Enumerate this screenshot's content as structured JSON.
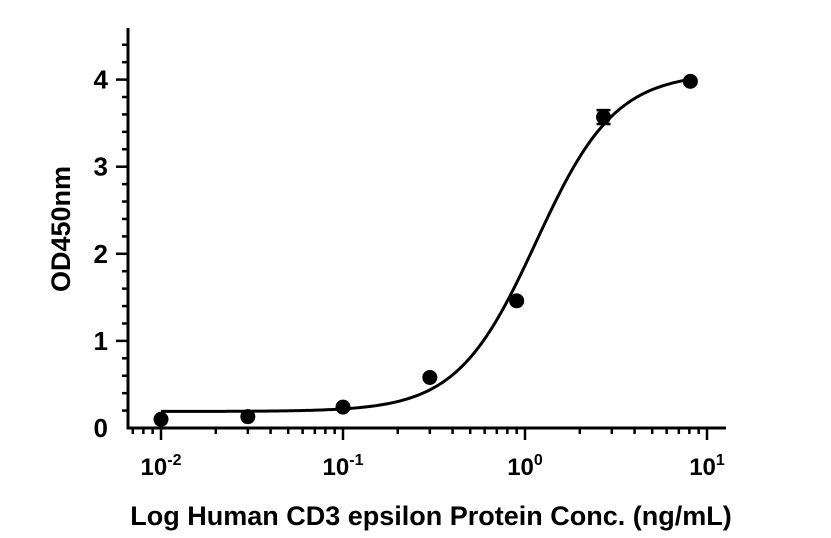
{
  "chart_data": {
    "type": "scatter",
    "title": "",
    "xlabel": "Log Human CD3 epsilon Protein Conc. (ng/mL)",
    "ylabel": "OD450nm",
    "x_scale": "log",
    "xlim": [
      0.005,
      12
    ],
    "ylim": [
      0,
      4.6
    ],
    "x_ticks": [
      {
        "value": 0.01,
        "base": "10",
        "exp": "-2"
      },
      {
        "value": 0.1,
        "base": "10",
        "exp": "-1"
      },
      {
        "value": 1,
        "base": "10",
        "exp": "0"
      },
      {
        "value": 10,
        "base": "10",
        "exp": "1"
      }
    ],
    "y_ticks": [
      0,
      1,
      2,
      3,
      4
    ],
    "grid": false,
    "series": [
      {
        "x": [
          0.01,
          0.03,
          0.1,
          0.3,
          0.9,
          2.7,
          8.1
        ],
        "y": [
          0.1,
          0.13,
          0.24,
          0.58,
          1.46,
          3.57,
          3.98
        ],
        "error": [
          0,
          0,
          0,
          0,
          0,
          0.08,
          0
        ],
        "color": "#000000"
      }
    ],
    "fit": {
      "type": "4PL",
      "bottom": 0.19,
      "top": 4.08,
      "ec50": 1.15,
      "hill": 2.0,
      "color": "#000000"
    }
  }
}
